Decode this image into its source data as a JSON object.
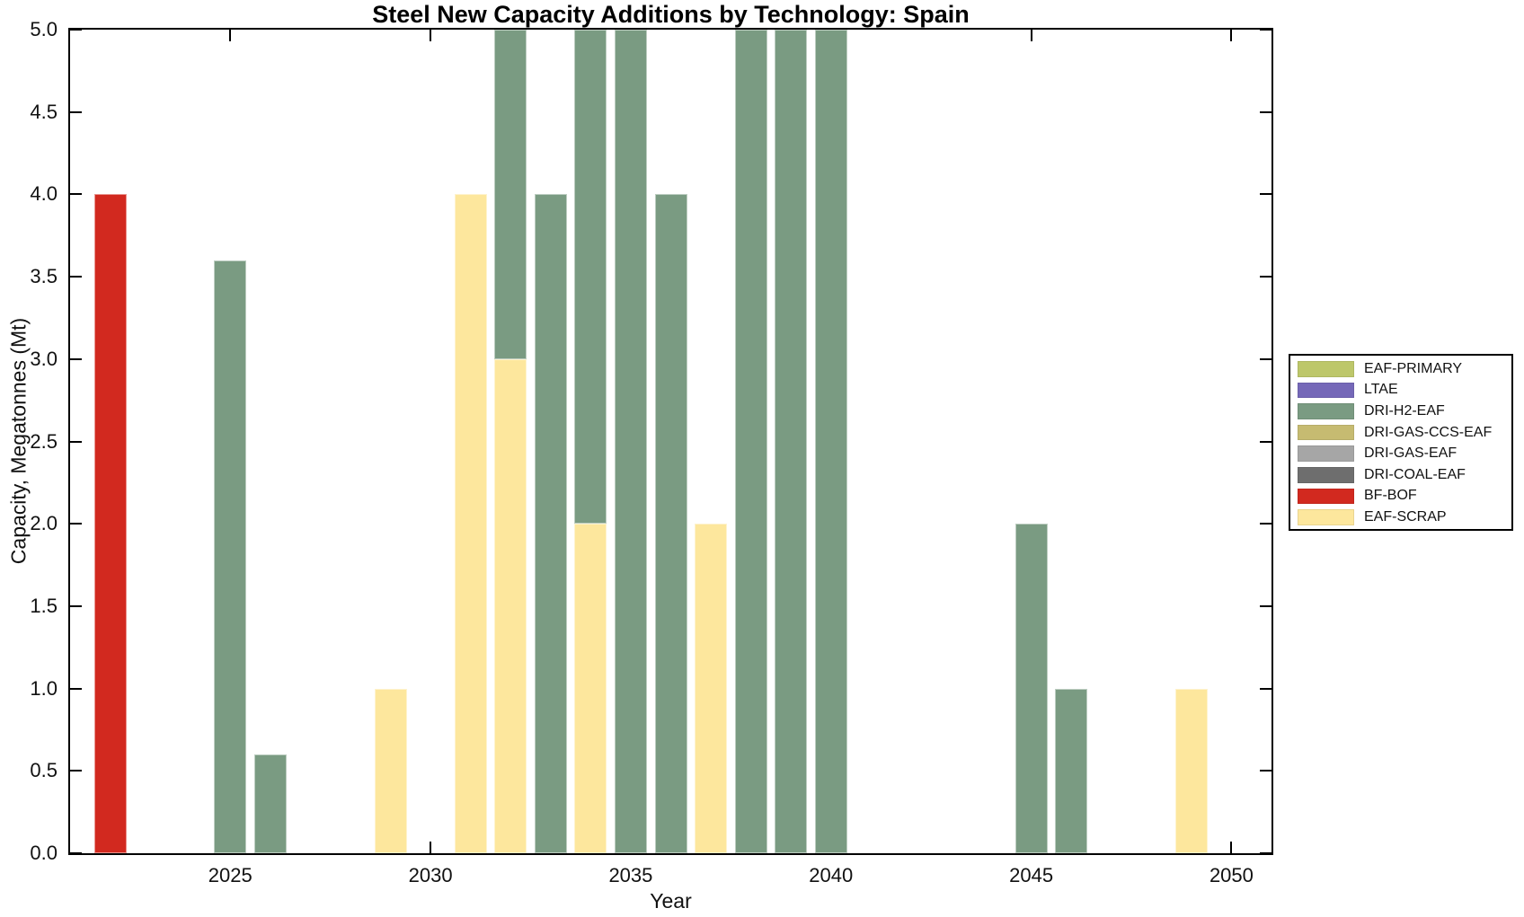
{
  "figure": {
    "background": "#ffffff",
    "axis_color": "#000000",
    "text_color": "#111111"
  },
  "chart_data": {
    "type": "bar",
    "stacked": true,
    "title": "Steel New Capacity Additions by Technology: Spain",
    "xlabel": "Year",
    "ylabel": "Capacity, Megatonnes (Mt)",
    "xlim": [
      2021,
      2051
    ],
    "ylim": [
      0,
      5
    ],
    "x_ticks": [
      2025,
      2030,
      2035,
      2040,
      2045,
      2050
    ],
    "y_ticks": [
      "0.0",
      "0.5",
      "1.0",
      "1.5",
      "2.0",
      "2.5",
      "3.0",
      "3.5",
      "4.0",
      "4.5",
      "5.0"
    ],
    "bar_width_years": 0.8,
    "grid": false,
    "legend_position": "outside-right",
    "colors": {
      "EAF-PRIMARY": "#bdc76a",
      "LTAE": "#7568b8",
      "DRI-H2-EAF": "#7a9b82",
      "DRI-GAS-CCS-EAF": "#c6bb71",
      "DRI-GAS-EAF": "#a6a6a6",
      "DRI-COAL-EAF": "#6e6e6e",
      "BF-BOF": "#d2291f",
      "EAF-SCRAP": "#fde79d"
    },
    "legend": [
      "EAF-PRIMARY",
      "LTAE",
      "DRI-H2-EAF",
      "DRI-GAS-CCS-EAF",
      "DRI-GAS-EAF",
      "DRI-COAL-EAF",
      "BF-BOF",
      "EAF-SCRAP"
    ],
    "bars": [
      {
        "year": 2022,
        "segments": [
          {
            "tech": "BF-BOF",
            "value": 4.0
          }
        ]
      },
      {
        "year": 2025,
        "segments": [
          {
            "tech": "DRI-H2-EAF",
            "value": 3.6
          }
        ]
      },
      {
        "year": 2026,
        "segments": [
          {
            "tech": "DRI-H2-EAF",
            "value": 0.6
          }
        ]
      },
      {
        "year": 2029,
        "segments": [
          {
            "tech": "EAF-SCRAP",
            "value": 1.0
          }
        ]
      },
      {
        "year": 2031,
        "segments": [
          {
            "tech": "EAF-SCRAP",
            "value": 4.0
          }
        ]
      },
      {
        "year": 2032,
        "segments": [
          {
            "tech": "EAF-SCRAP",
            "value": 3.0
          },
          {
            "tech": "DRI-H2-EAF",
            "value": 2.0,
            "clipped": true
          }
        ]
      },
      {
        "year": 2033,
        "segments": [
          {
            "tech": "DRI-H2-EAF",
            "value": 4.0
          }
        ]
      },
      {
        "year": 2034,
        "segments": [
          {
            "tech": "EAF-SCRAP",
            "value": 2.0
          },
          {
            "tech": "DRI-H2-EAF",
            "value": 3.0,
            "clipped": true
          }
        ]
      },
      {
        "year": 2035,
        "segments": [
          {
            "tech": "DRI-H2-EAF",
            "value": 5.0,
            "clipped": true
          }
        ]
      },
      {
        "year": 2036,
        "segments": [
          {
            "tech": "DRI-H2-EAF",
            "value": 4.0
          }
        ]
      },
      {
        "year": 2037,
        "segments": [
          {
            "tech": "EAF-SCRAP",
            "value": 2.0
          }
        ]
      },
      {
        "year": 2038,
        "segments": [
          {
            "tech": "DRI-H2-EAF",
            "value": 5.0,
            "clipped": true
          }
        ]
      },
      {
        "year": 2039,
        "segments": [
          {
            "tech": "DRI-H2-EAF",
            "value": 5.0,
            "clipped": true
          }
        ]
      },
      {
        "year": 2040,
        "segments": [
          {
            "tech": "DRI-H2-EAF",
            "value": 5.0,
            "clipped": true
          }
        ]
      },
      {
        "year": 2045,
        "segments": [
          {
            "tech": "DRI-H2-EAF",
            "value": 2.0
          }
        ]
      },
      {
        "year": 2046,
        "segments": [
          {
            "tech": "DRI-H2-EAF",
            "value": 1.0
          }
        ]
      },
      {
        "year": 2049,
        "segments": [
          {
            "tech": "EAF-SCRAP",
            "value": 1.0
          }
        ]
      }
    ]
  }
}
